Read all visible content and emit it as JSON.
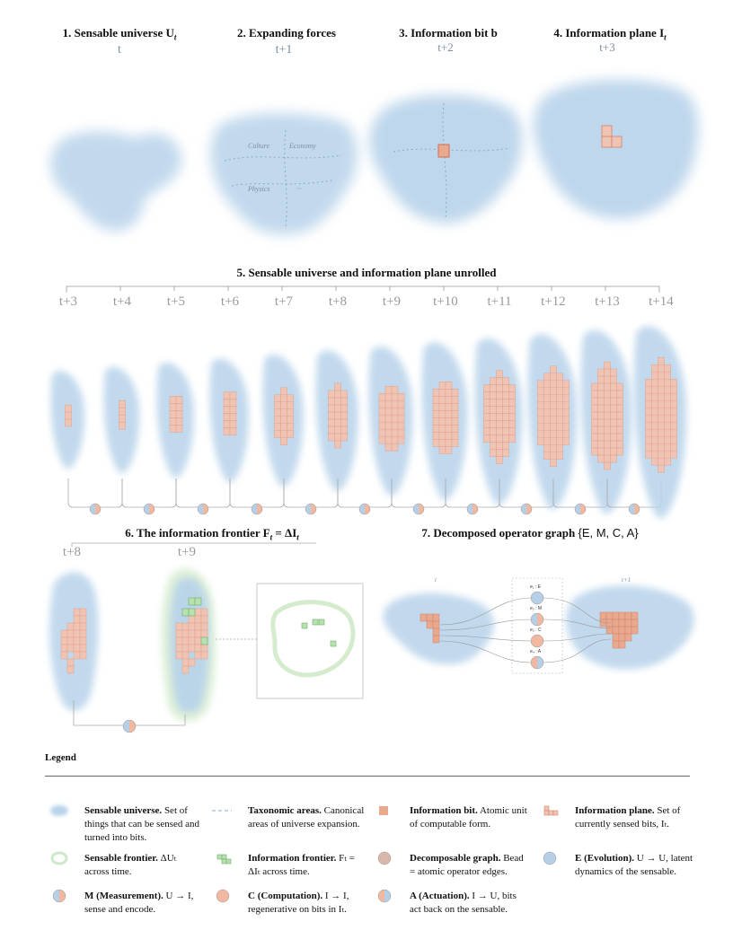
{
  "panels": {
    "p1": {
      "title": "1. Sensable universe U",
      "title_sub": "t",
      "time": "t"
    },
    "p2": {
      "title": "2. Expanding forces",
      "time": "t+1",
      "areas": [
        "Culture",
        "Economy",
        "Physics",
        "···"
      ]
    },
    "p3": {
      "title": "3. Information bit b",
      "time": "t+2"
    },
    "p4": {
      "title": "4. Information plane I",
      "title_sub": "t",
      "time": "t+3"
    },
    "p5": {
      "title": "5. Sensable universe and information plane unrolled",
      "times": [
        "t+3",
        "t+4",
        "t+5",
        "t+6",
        "t+7",
        "t+8",
        "t+9",
        "t+10",
        "t+11",
        "t+12",
        "t+13",
        "t+14"
      ]
    },
    "p6": {
      "title": "6. The information frontier F",
      "title_sub": "t",
      "title_eq": " = ΔI",
      "title_sub2": "t",
      "times": [
        "t+8",
        "t+9"
      ]
    },
    "p7": {
      "title": "7. Decomposed operator graph ",
      "title_set": "{E, M, C, A}",
      "time_left": "t",
      "time_right": "t+1",
      "edges": [
        "e₁ : E",
        "e₂ : M",
        "e₃ : C",
        "e₄ : A"
      ]
    }
  },
  "legend": {
    "heading": "Legend",
    "items": [
      {
        "title": "Sensable universe.",
        "desc": "Set of things that can be sensed and turned into bits."
      },
      {
        "title": "Taxonomic areas.",
        "desc": "Canonical areas of universe expansion."
      },
      {
        "title": "Information bit.",
        "desc": "Atomic unit of computable form."
      },
      {
        "title": "Information plane.",
        "desc": "Set of currently sensed bits, Iₜ."
      },
      {
        "title": "Sensable frontier.",
        "desc": "ΔUₜ across time."
      },
      {
        "title": "Information frontier.",
        "desc": "Fₜ = ΔIₜ across time."
      },
      {
        "title": "Decomposable graph.",
        "desc": "Bead = atomic operator edges."
      },
      {
        "title": "E (Evolution).",
        "desc": "U → U, latent dynamics of the sensable."
      },
      {
        "title": "M (Measurement).",
        "desc": "U → I, sense and encode."
      },
      {
        "title": "C (Computation).",
        "desc": "I → I, regenerative on bits in Iₜ."
      },
      {
        "title": "A (Actuation).",
        "desc": "I → U, bits act back on the sensable."
      }
    ]
  },
  "colors": {
    "universe": "#b8d3ea",
    "bit": "#e8a98f",
    "bit_stroke": "#d4826a",
    "frontier": "#b8e0b0",
    "bead_blue": "#b7cfe6"
  }
}
